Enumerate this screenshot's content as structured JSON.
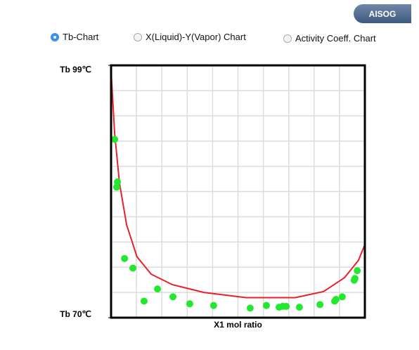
{
  "button": "AISOG",
  "options": [
    {
      "label": "Tb-Chart",
      "selected": true
    },
    {
      "label": "X(Liquid)-Y(Vapor) Chart",
      "selected": false
    },
    {
      "label": "Activity Coeff. Chart",
      "selected": false
    }
  ],
  "chart_data": {
    "type": "scatter",
    "x_label": "X1 mol ratio",
    "xlim": [
      0,
      1
    ],
    "ylim": [
      70,
      99
    ],
    "yticks": [
      {
        "value": 70,
        "label": "Tb 70℃"
      },
      {
        "value": 99,
        "label": "Tb 99℃"
      }
    ],
    "grid": true,
    "series": [
      {
        "type": "line",
        "color": "#e8202a",
        "x": [
          0,
          0.014,
          0.033,
          0.061,
          0.102,
          0.158,
          0.241,
          0.366,
          0.532,
          0.726,
          0.837,
          0.92,
          0.975,
          1
        ],
        "values": [
          98.4,
          91.2,
          85.5,
          80.7,
          77.0,
          75.0,
          73.8,
          72.9,
          72.3,
          72.3,
          73.0,
          74.6,
          76.6,
          78.4
        ]
      },
      {
        "type": "scatter",
        "color": "#22e830",
        "x": [
          0.014,
          0.025,
          0.022,
          0.053,
          0.086,
          0.13,
          0.183,
          0.244,
          0.31,
          0.404,
          0.548,
          0.612,
          0.662,
          0.676,
          0.69,
          0.742,
          0.823,
          0.881,
          0.886,
          0.911,
          0.958,
          0.961,
          0.97
        ],
        "values": [
          90.5,
          85.6,
          85.0,
          76.8,
          75.7,
          71.9,
          73.3,
          72.4,
          71.6,
          71.4,
          71.1,
          71.4,
          71.2,
          71.3,
          71.3,
          71.2,
          71.5,
          71.9,
          72.1,
          72.4,
          74.3,
          74.5,
          75.4
        ]
      }
    ]
  }
}
